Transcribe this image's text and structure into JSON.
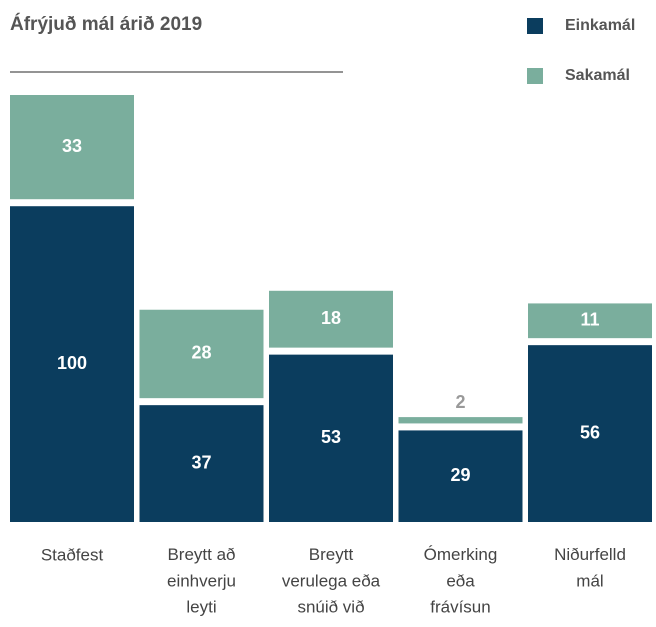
{
  "chart_data": {
    "type": "stacked_bar",
    "title": "Áfrýjuð mál árið 2019",
    "categories": [
      "Staðfest",
      "Breytt að\neinhverju\nleyti",
      "Breytt\nverulega eða\nsnúið við",
      "Ómerking\neða\nfrávísun",
      "Niðurfelld\nmál"
    ],
    "series": [
      {
        "name": "Einkamál",
        "color": "#0b3d5e",
        "values": [
          100,
          37,
          53,
          29,
          56
        ]
      },
      {
        "name": "Sakamál",
        "color": "#7aae9d",
        "values": [
          33,
          28,
          18,
          2,
          11
        ]
      }
    ],
    "legend": "top-right"
  }
}
